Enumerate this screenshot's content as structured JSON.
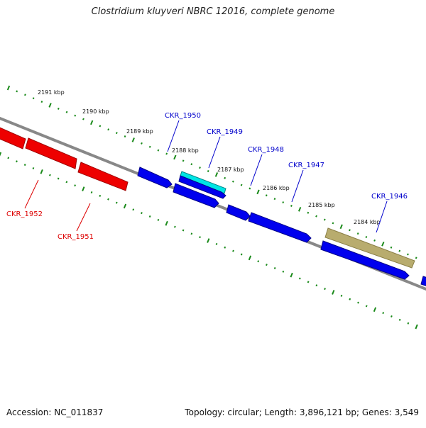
{
  "title": "Clostridium kluyveri NBRC 12016, complete genome",
  "footer": {
    "accession": "Accession: NC_011837",
    "stats": "Topology: circular; Length: 3,896,121 bp; Genes: 3,549"
  },
  "colors": {
    "backbone": "#808080",
    "tick": "#1a8a1a",
    "forward_gene": "#0000ee",
    "reverse_gene": "#ee0000",
    "label_blue": "#0000cc",
    "label_red": "#dd0000",
    "highlight": "#00e5e5",
    "olive": "#b8ac6e"
  },
  "scale_labels": [
    "2191 kbp",
    "2190 kbp",
    "2189 kbp",
    "2188 kbp",
    "2187 kbp",
    "2186 kbp",
    "2185 kbp",
    "2184 kbp"
  ],
  "genes": [
    {
      "label": "CKR_1952",
      "strand": "reverse",
      "color": "#ee0000"
    },
    {
      "label": "CKR_1951",
      "strand": "reverse",
      "color": "#ee0000"
    },
    {
      "label": "CKR_1950",
      "strand": "forward",
      "color": "#0000ee"
    },
    {
      "label": "CKR_1949",
      "strand": "forward",
      "color": "#0000ee"
    },
    {
      "label": "CKR_1948",
      "strand": "forward",
      "color": "#0000ee"
    },
    {
      "label": "CKR_1947",
      "strand": "forward",
      "color": "#0000ee"
    },
    {
      "label": "CKR_1946",
      "strand": "forward",
      "color": "#b8ac6e"
    }
  ]
}
